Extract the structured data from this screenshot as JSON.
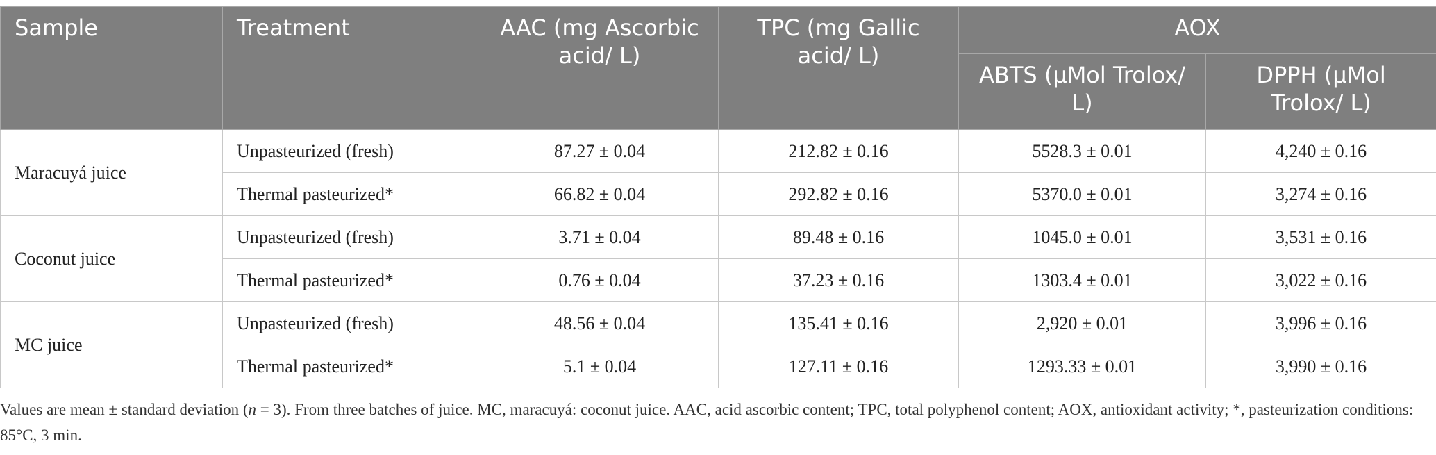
{
  "header": {
    "sample": "Sample",
    "treatment": "Treatment",
    "aac": "AAC (mg Ascorbic acid/ L)",
    "tpc": "TPC (mg Gallic acid/ L)",
    "aox": "AOX",
    "abts": "ABTS (μMol Trolox/ L)",
    "dpph": "DPPH (μMol Trolox/ L)"
  },
  "groups": [
    {
      "sample": "Maracuyá juice",
      "rows": [
        [
          "Unpasteurized (fresh)",
          "87.27 ± 0.04",
          "212.82 ± 0.16",
          "5528.3 ± 0.01",
          "4,240 ± 0.16"
        ],
        [
          "Thermal pasteurized*",
          "66.82 ± 0.04",
          "292.82 ± 0.16",
          "5370.0 ± 0.01",
          "3,274 ± 0.16"
        ]
      ]
    },
    {
      "sample": "Coconut juice",
      "rows": [
        [
          "Unpasteurized (fresh)",
          "3.71 ± 0.04",
          "89.48 ± 0.16",
          "1045.0 ± 0.01",
          "3,531 ± 0.16"
        ],
        [
          "Thermal pasteurized*",
          "0.76 ± 0.04",
          "37.23 ± 0.16",
          "1303.4 ± 0.01",
          "3,022 ± 0.16"
        ]
      ]
    },
    {
      "sample": "MC juice",
      "rows": [
        [
          "Unpasteurized (fresh)",
          "48.56 ± 0.04",
          "135.41 ± 0.16",
          "2,920 ± 0.01",
          "3,996 ± 0.16"
        ],
        [
          "Thermal pasteurized*",
          "5.1 ± 0.04",
          "127.11 ± 0.16",
          "1293.33 ± 0.01",
          "3,990 ± 0.16"
        ]
      ]
    }
  ],
  "footnote": [
    "Values are mean ± standard deviation (",
    "n",
    " = 3). From three batches of juice. MC, maracuyá: coconut juice. AAC, acid ascorbic content; TPC, total polyphenol content; AOX, antioxidant activity; *, pasteurization conditions: 85°C, 3 min."
  ]
}
